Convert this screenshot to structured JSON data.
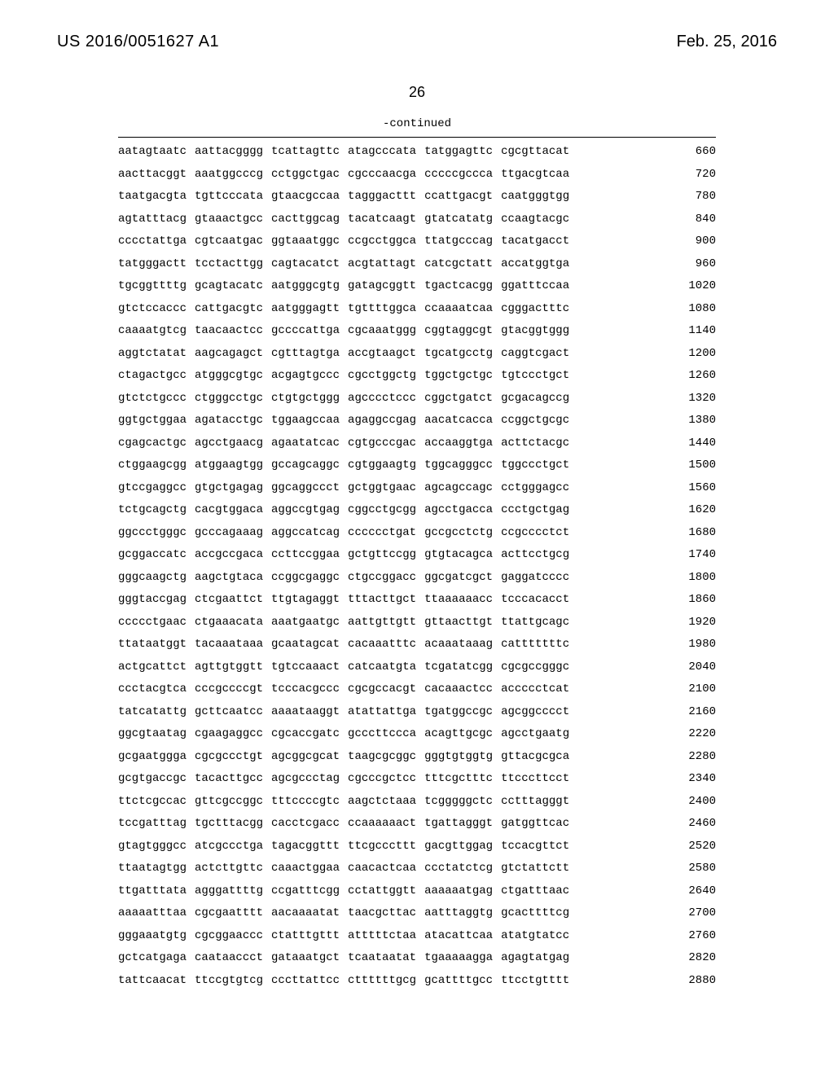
{
  "header": {
    "patent_number": "US 2016/0051627 A1",
    "date": "Feb. 25, 2016"
  },
  "page_number": "26",
  "continued_label": "-continued",
  "sequence_rows": [
    {
      "blocks": [
        "aatagtaatc",
        "aattacgggg",
        "tcattagttc",
        "atagcccata",
        "tatggagttc",
        "cgcgttacat"
      ],
      "position": "660"
    },
    {
      "blocks": [
        "aacttacggt",
        "aaatggcccg",
        "cctggctgac",
        "cgcccaacga",
        "cccccgccca",
        "ttgacgtcaa"
      ],
      "position": "720"
    },
    {
      "blocks": [
        "taatgacgta",
        "tgttcccata",
        "gtaacgccaa",
        "tagggacttt",
        "ccattgacgt",
        "caatgggtgg"
      ],
      "position": "780"
    },
    {
      "blocks": [
        "agtatttacg",
        "gtaaactgcc",
        "cacttggcag",
        "tacatcaagt",
        "gtatcatatg",
        "ccaagtacgc"
      ],
      "position": "840"
    },
    {
      "blocks": [
        "cccctattga",
        "cgtcaatgac",
        "ggtaaatggc",
        "ccgcctggca",
        "ttatgcccag",
        "tacatgacct"
      ],
      "position": "900"
    },
    {
      "blocks": [
        "tatgggactt",
        "tcctacttgg",
        "cagtacatct",
        "acgtattagt",
        "catcgctatt",
        "accatggtga"
      ],
      "position": "960"
    },
    {
      "blocks": [
        "tgcggttttg",
        "gcagtacatc",
        "aatgggcgtg",
        "gatagcggtt",
        "tgactcacgg",
        "ggatttccaa"
      ],
      "position": "1020"
    },
    {
      "blocks": [
        "gtctccaccc",
        "cattgacgtc",
        "aatgggagtt",
        "tgttttggca",
        "ccaaaatcaa",
        "cgggactttc"
      ],
      "position": "1080"
    },
    {
      "blocks": [
        "caaaatgtcg",
        "taacaactcc",
        "gccccattga",
        "cgcaaatggg",
        "cggtaggcgt",
        "gtacggtggg"
      ],
      "position": "1140"
    },
    {
      "blocks": [
        "aggtctatat",
        "aagcagagct",
        "cgtttagtga",
        "accgtaagct",
        "tgcatgcctg",
        "caggtcgact"
      ],
      "position": "1200"
    },
    {
      "blocks": [
        "ctagactgcc",
        "atgggcgtgc",
        "acgagtgccc",
        "cgcctggctg",
        "tggctgctgc",
        "tgtccctgct"
      ],
      "position": "1260"
    },
    {
      "blocks": [
        "gtctctgccc",
        "ctgggcctgc",
        "ctgtgctggg",
        "agcccctccc",
        "cggctgatct",
        "gcgacagccg"
      ],
      "position": "1320"
    },
    {
      "blocks": [
        "ggtgctggaa",
        "agatacctgc",
        "tggaagccaa",
        "agaggccgag",
        "aacatcacca",
        "ccggctgcgc"
      ],
      "position": "1380"
    },
    {
      "blocks": [
        "cgagcactgc",
        "agcctgaacg",
        "agaatatcac",
        "cgtgcccgac",
        "accaaggtga",
        "acttctacgc"
      ],
      "position": "1440"
    },
    {
      "blocks": [
        "ctggaagcgg",
        "atggaagtgg",
        "gccagcaggc",
        "cgtggaagtg",
        "tggcagggcc",
        "tggccctgct"
      ],
      "position": "1500"
    },
    {
      "blocks": [
        "gtccgaggcc",
        "gtgctgagag",
        "ggcaggccct",
        "gctggtgaac",
        "agcagccagc",
        "cctgggagcc"
      ],
      "position": "1560"
    },
    {
      "blocks": [
        "tctgcagctg",
        "cacgtggaca",
        "aggccgtgag",
        "cggcctgcgg",
        "agcctgacca",
        "ccctgctgag"
      ],
      "position": "1620"
    },
    {
      "blocks": [
        "ggccctgggc",
        "gcccagaaag",
        "aggccatcag",
        "cccccctgat",
        "gccgcctctg",
        "ccgcccctct"
      ],
      "position": "1680"
    },
    {
      "blocks": [
        "gcggaccatc",
        "accgccgaca",
        "ccttccggaa",
        "gctgttccgg",
        "gtgtacagca",
        "acttcctgcg"
      ],
      "position": "1740"
    },
    {
      "blocks": [
        "gggcaagctg",
        "aagctgtaca",
        "ccggcgaggc",
        "ctgccggacc",
        "ggcgatcgct",
        "gaggatcccc"
      ],
      "position": "1800"
    },
    {
      "blocks": [
        "gggtaccgag",
        "ctcgaattct",
        "ttgtagaggt",
        "tttacttgct",
        "ttaaaaaacc",
        "tcccacacct"
      ],
      "position": "1860"
    },
    {
      "blocks": [
        "ccccctgaac",
        "ctgaaacata",
        "aaatgaatgc",
        "aattgttgtt",
        "gttaacttgt",
        "ttattgcagc"
      ],
      "position": "1920"
    },
    {
      "blocks": [
        "ttataatggt",
        "tacaaataaa",
        "gcaatagcat",
        "cacaaatttc",
        "acaaataaag",
        "catttttttc"
      ],
      "position": "1980"
    },
    {
      "blocks": [
        "actgcattct",
        "agttgtggtt",
        "tgtccaaact",
        "catcaatgta",
        "tcgatatcgg",
        "cgcgccgggc"
      ],
      "position": "2040"
    },
    {
      "blocks": [
        "ccctacgtca",
        "cccgccccgt",
        "tcccacgccc",
        "cgcgccacgt",
        "cacaaactcc",
        "accccctcat"
      ],
      "position": "2100"
    },
    {
      "blocks": [
        "tatcatattg",
        "gcttcaatcc",
        "aaaataaggt",
        "atattattga",
        "tgatggccgc",
        "agcggcccct"
      ],
      "position": "2160"
    },
    {
      "blocks": [
        "ggcgtaatag",
        "cgaagaggcc",
        "cgcaccgatc",
        "gcccttccca",
        "acagttgcgc",
        "agcctgaatg"
      ],
      "position": "2220"
    },
    {
      "blocks": [
        "gcgaatggga",
        "cgcgccctgt",
        "agcggcgcat",
        "taagcgcggc",
        "gggtgtggtg",
        "gttacgcgca"
      ],
      "position": "2280"
    },
    {
      "blocks": [
        "gcgtgaccgc",
        "tacacttgcc",
        "agcgccctag",
        "cgcccgctcc",
        "tttcgctttc",
        "ttcccttcct"
      ],
      "position": "2340"
    },
    {
      "blocks": [
        "ttctcgccac",
        "gttcgccggc",
        "tttccccgtc",
        "aagctctaaa",
        "tcgggggctc",
        "cctttagggt"
      ],
      "position": "2400"
    },
    {
      "blocks": [
        "tccgatttag",
        "tgctttacgg",
        "cacctcgacc",
        "ccaaaaaact",
        "tgattagggt",
        "gatggttcac"
      ],
      "position": "2460"
    },
    {
      "blocks": [
        "gtagtgggcc",
        "atcgccctga",
        "tagacggttt",
        "ttcgcccttt",
        "gacgttggag",
        "tccacgttct"
      ],
      "position": "2520"
    },
    {
      "blocks": [
        "ttaatagtgg",
        "actcttgttc",
        "caaactggaa",
        "caacactcaa",
        "ccctatctcg",
        "gtctattctt"
      ],
      "position": "2580"
    },
    {
      "blocks": [
        "ttgatttata",
        "agggattttg",
        "ccgatttcgg",
        "cctattggtt",
        "aaaaaatgag",
        "ctgatttaac"
      ],
      "position": "2640"
    },
    {
      "blocks": [
        "aaaaatttaa",
        "cgcgaatttt",
        "aacaaaatat",
        "taacgcttac",
        "aatttaggtg",
        "gcacttttcg"
      ],
      "position": "2700"
    },
    {
      "blocks": [
        "gggaaatgtg",
        "cgcggaaccc",
        "ctatttgttt",
        "atttttctaa",
        "atacattcaa",
        "atatgtatcc"
      ],
      "position": "2760"
    },
    {
      "blocks": [
        "gctcatgaga",
        "caataaccct",
        "gataaatgct",
        "tcaataatat",
        "tgaaaaagga",
        "agagtatgag"
      ],
      "position": "2820"
    },
    {
      "blocks": [
        "tattcaacat",
        "ttccgtgtcg",
        "cccttattcc",
        "cttttttgcg",
        "gcattttgcc",
        "ttcctgtttt"
      ],
      "position": "2880"
    }
  ]
}
